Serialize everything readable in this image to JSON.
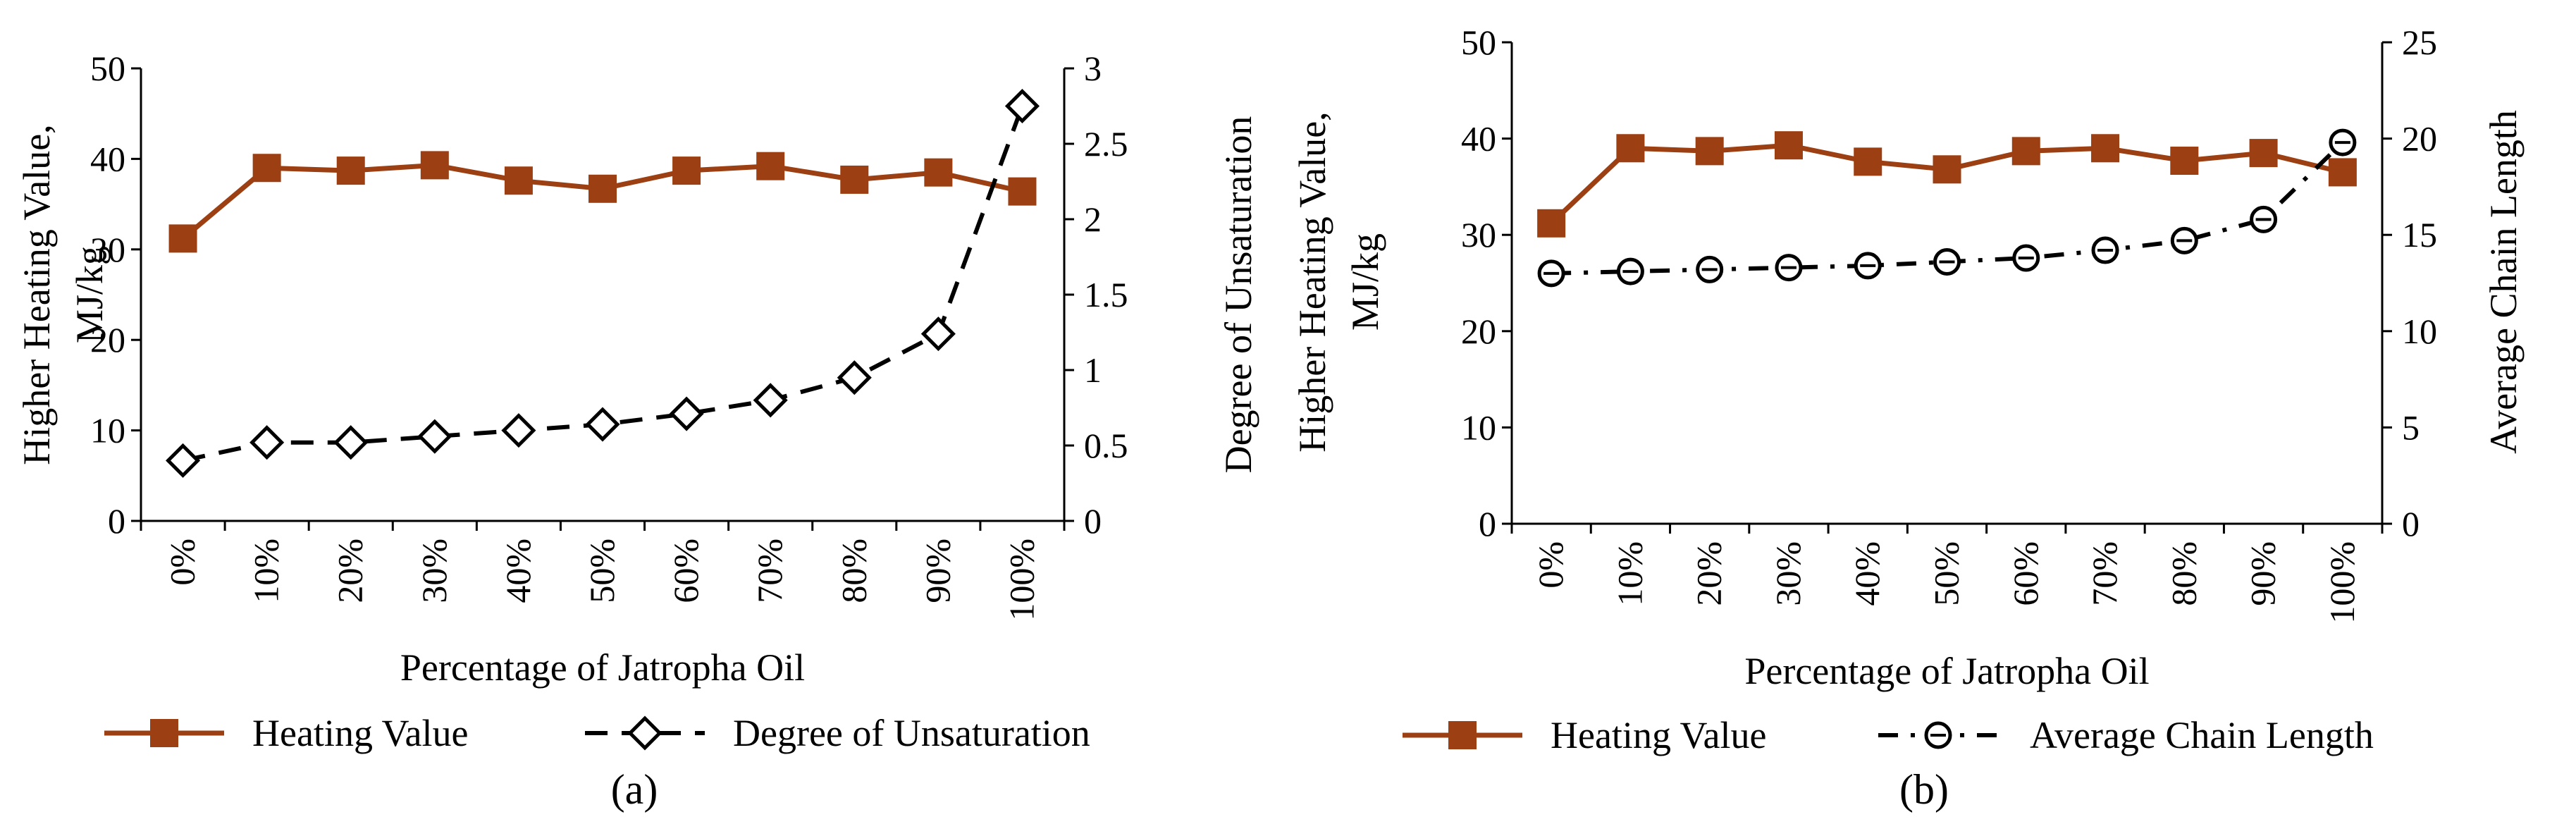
{
  "chart_data": [
    {
      "type": "line",
      "panel_label": "(a)",
      "categories": [
        "0%",
        "10%",
        "20%",
        "30%",
        "40%",
        "50%",
        "60%",
        "70%",
        "80%",
        "90%",
        "100%"
      ],
      "xlabel": "Percentage of Jatropha Oil",
      "ylabel_left": [
        "Higher Heating Value,",
        "MJ/kg"
      ],
      "ylabel_right": "Degree of Unsaturation",
      "ylim_left": [
        0,
        50
      ],
      "yticks_left": [
        "0",
        "10",
        "20",
        "30",
        "40",
        "50"
      ],
      "ylim_right": [
        0,
        3
      ],
      "yticks_right": [
        "0",
        "0.5",
        "1",
        "1.5",
        "2",
        "2.5",
        "3"
      ],
      "series": [
        {
          "name": "Heating Value",
          "axis": "left",
          "color": "#9c3f12",
          "marker": "square",
          "line": "solid",
          "values": [
            31.2,
            39.0,
            38.7,
            39.3,
            37.6,
            36.7,
            38.7,
            39.2,
            37.7,
            38.5,
            36.4
          ]
        },
        {
          "name": "Degree of Unsaturation",
          "axis": "right",
          "color": "#000000",
          "marker": "diamond",
          "line": "dash",
          "values": [
            0.4,
            0.52,
            0.52,
            0.56,
            0.6,
            0.64,
            0.71,
            0.8,
            0.95,
            1.24,
            2.75
          ]
        }
      ]
    },
    {
      "type": "line",
      "panel_label": "(b)",
      "categories": [
        "0%",
        "10%",
        "20%",
        "30%",
        "40%",
        "50%",
        "60%",
        "70%",
        "80%",
        "90%",
        "100%"
      ],
      "xlabel": "Percentage of Jatropha Oil",
      "ylabel_left": [
        "Higher Heating Value,",
        "MJ/kg"
      ],
      "ylabel_right": "Average Chain Length",
      "ylim_left": [
        0,
        50
      ],
      "yticks_left": [
        "0",
        "10",
        "20",
        "30",
        "40",
        "50"
      ],
      "ylim_right": [
        0,
        25
      ],
      "yticks_right": [
        "0",
        "5",
        "10",
        "15",
        "20",
        "25"
      ],
      "series": [
        {
          "name": "Heating Value",
          "axis": "left",
          "color": "#9c3f12",
          "marker": "square",
          "line": "solid",
          "values": [
            31.2,
            39.0,
            38.7,
            39.3,
            37.6,
            36.8,
            38.7,
            39.0,
            37.7,
            38.5,
            36.5
          ]
        },
        {
          "name": "Average Chain Length",
          "axis": "right",
          "color": "#000000",
          "marker": "circle",
          "line": "dashdot",
          "values": [
            13.0,
            13.1,
            13.2,
            13.3,
            13.4,
            13.6,
            13.8,
            14.2,
            14.7,
            15.8,
            19.8
          ]
        }
      ]
    }
  ]
}
